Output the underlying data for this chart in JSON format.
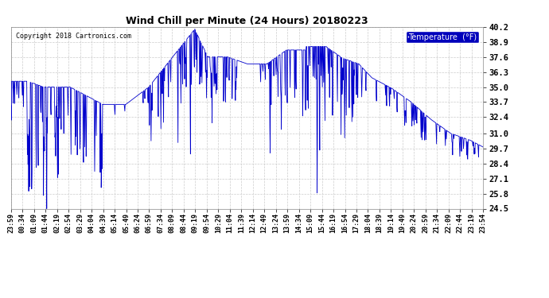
{
  "title": "Wind Chill per Minute (24 Hours) 20180223",
  "copyright": "Copyright 2018 Cartronics.com",
  "legend_label": "Temperature  (°F)",
  "yticks": [
    24.5,
    25.8,
    27.1,
    28.4,
    29.7,
    31.0,
    32.4,
    33.7,
    35.0,
    36.3,
    37.6,
    38.9,
    40.2
  ],
  "ylim": [
    24.5,
    40.2
  ],
  "line_color": "#0000cc",
  "bg_color": "#ffffff",
  "grid_color": "#cccccc",
  "xtick_labels": [
    "23:59",
    "00:34",
    "01:09",
    "01:44",
    "02:19",
    "02:54",
    "03:29",
    "04:04",
    "04:39",
    "05:14",
    "05:49",
    "06:24",
    "06:59",
    "07:34",
    "08:09",
    "08:44",
    "09:19",
    "09:54",
    "10:29",
    "11:04",
    "11:39",
    "12:14",
    "12:49",
    "13:24",
    "13:59",
    "14:34",
    "15:09",
    "15:44",
    "16:19",
    "16:54",
    "17:29",
    "18:04",
    "18:39",
    "19:14",
    "19:49",
    "20:24",
    "20:59",
    "21:34",
    "22:09",
    "22:44",
    "23:19",
    "23:54"
  ],
  "legend_bg": "#0000bb",
  "legend_text_color": "#ffffff",
  "figsize": [
    6.9,
    3.75
  ],
  "dpi": 100
}
